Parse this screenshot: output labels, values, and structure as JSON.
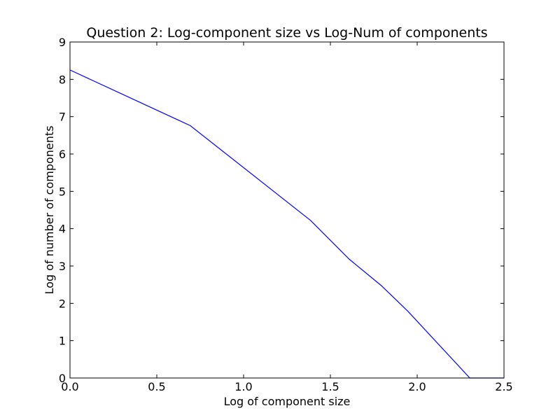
{
  "chart_data": {
    "type": "line",
    "title": "Question 2:  Log-component size vs Log-Num of components",
    "xlabel": "Log of component size",
    "ylabel": "Log of number of components",
    "xlim": [
      0,
      2.5
    ],
    "ylim": [
      0,
      9
    ],
    "xticks": [
      0.0,
      0.5,
      1.0,
      1.5,
      2.0,
      2.5
    ],
    "xtick_labels": [
      "0.0",
      "0.5",
      "1.0",
      "1.5",
      "2.0",
      "2.5"
    ],
    "yticks": [
      0,
      1,
      2,
      3,
      4,
      5,
      6,
      7,
      8,
      9
    ],
    "ytick_labels": [
      "0",
      "1",
      "2",
      "3",
      "4",
      "5",
      "6",
      "7",
      "8",
      "9"
    ],
    "grid": false,
    "series": [
      {
        "color": "#0000ff",
        "x": [
          0.0,
          0.693,
          1.386,
          1.609,
          1.792,
          1.946,
          2.303,
          2.5
        ],
        "y": [
          8.25,
          6.76,
          4.22,
          3.18,
          2.48,
          1.79,
          0.0,
          0.0
        ]
      }
    ]
  }
}
